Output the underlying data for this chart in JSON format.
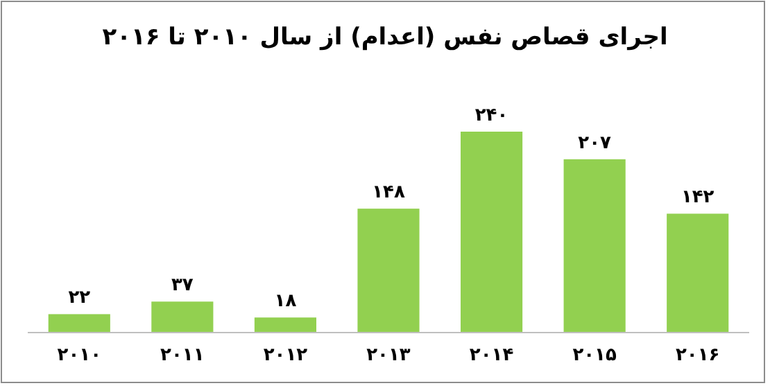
{
  "chart_data": {
    "type": "bar",
    "title": "اجرای قصاص نفس (اعدام) از سال ۲۰۱۰  تا ۲۰۱۶",
    "categories": [
      "۲۰۱۰",
      "۲۰۱۱",
      "۲۰۱۲",
      "۲۰۱۳",
      "۲۰۱۴",
      "۲۰۱۵",
      "۲۰۱۶"
    ],
    "values": [
      22,
      37,
      18,
      148,
      240,
      207,
      142
    ],
    "value_labels": [
      "۲۲",
      "۳۷",
      "۱۸",
      "۱۴۸",
      "۲۴۰",
      "۲۰۷",
      "۱۴۲"
    ],
    "color": "#92d050"
  }
}
